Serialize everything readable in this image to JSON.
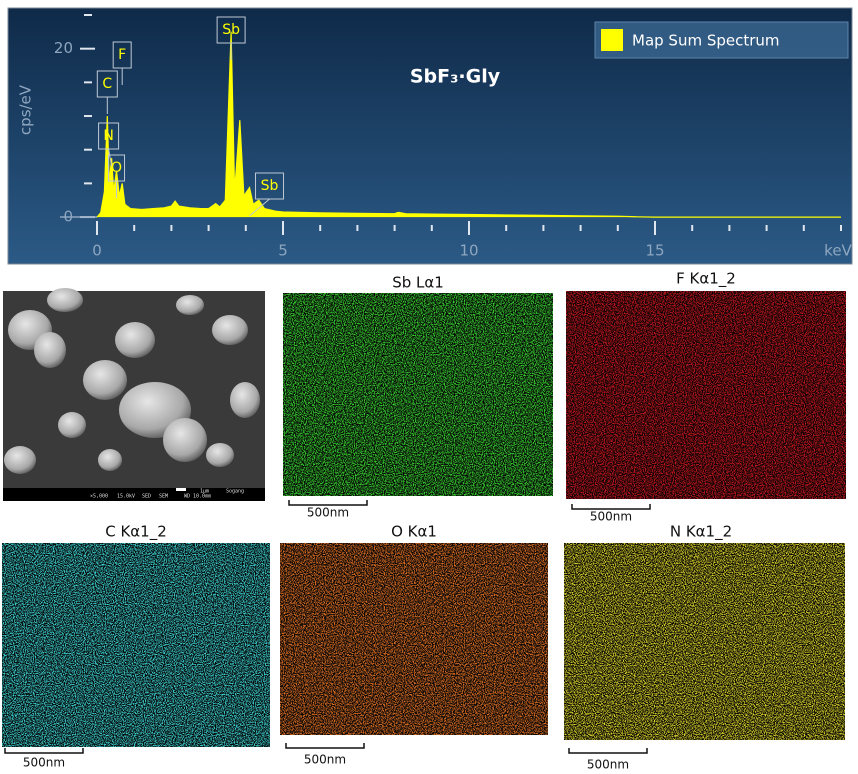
{
  "chart_data": {
    "type": "area",
    "title": "SbF₃·Gly",
    "x_label": "keV",
    "y_label": "cps/eV",
    "x": [
      0,
      0.1,
      0.2,
      0.277,
      0.33,
      0.392,
      0.45,
      0.525,
      0.6,
      0.677,
      0.75,
      0.9,
      1.2,
      1.5,
      1.8,
      2.0,
      2.1,
      2.2,
      2.5,
      2.8,
      3.0,
      3.19,
      3.3,
      3.45,
      3.605,
      3.7,
      3.84,
      3.95,
      4.1,
      4.2,
      4.35,
      4.5,
      4.8,
      5,
      6,
      7,
      8,
      8.1,
      8.3,
      9,
      10,
      11,
      12,
      13,
      14,
      14.5,
      15,
      20
    ],
    "series": [
      {
        "name": "Map Sum Spectrum",
        "color": "#ffff00",
        "values": [
          0,
          0.5,
          3,
          12,
          4,
          7,
          3,
          5.5,
          2.5,
          4,
          1.5,
          1,
          0.9,
          1,
          1.1,
          1.3,
          1.9,
          1.3,
          1.1,
          1,
          1,
          1.6,
          1.2,
          2,
          22,
          3,
          11.5,
          2.5,
          3.5,
          1.5,
          2,
          1,
          0.7,
          0.6,
          0.5,
          0.45,
          0.4,
          0.55,
          0.4,
          0.35,
          0.3,
          0.25,
          0.2,
          0.15,
          0.1,
          0.03,
          0,
          0
        ]
      }
    ],
    "xlim": [
      0,
      20
    ],
    "ylim": [
      -1.3,
      24
    ],
    "xticks": [
      0,
      5,
      10,
      15
    ],
    "yticks": [
      0,
      20
    ],
    "legend": "upper right",
    "annotations": [
      {
        "text": "C",
        "x": 0.277
      },
      {
        "text": "F",
        "x": 0.677
      },
      {
        "text": "N",
        "x": 0.392
      },
      {
        "text": "O",
        "x": 0.525
      },
      {
        "text": "Sb",
        "x": 3.605
      },
      {
        "text": "Sb",
        "x": 4.1
      }
    ]
  },
  "sem_image": {
    "labels": [
      "×5,000",
      "15.0kV",
      "SED",
      "SEM",
      "WD 10.0mm",
      "1μm",
      "Sogang"
    ]
  },
  "maps": [
    {
      "title": "Sb Lα1",
      "color": "#38d030",
      "scale_bar": "500nm"
    },
    {
      "title": "F Kα1_2",
      "color": "#c8141e",
      "scale_bar": "500nm"
    },
    {
      "title": "C Kα1_2",
      "color": "#3ccfd0",
      "scale_bar": "500nm"
    },
    {
      "title": "O Kα1",
      "color": "#dc6e24",
      "scale_bar": "500nm"
    },
    {
      "title": "N Kα1_2",
      "color": "#dcd42a",
      "scale_bar": "500nm"
    }
  ]
}
